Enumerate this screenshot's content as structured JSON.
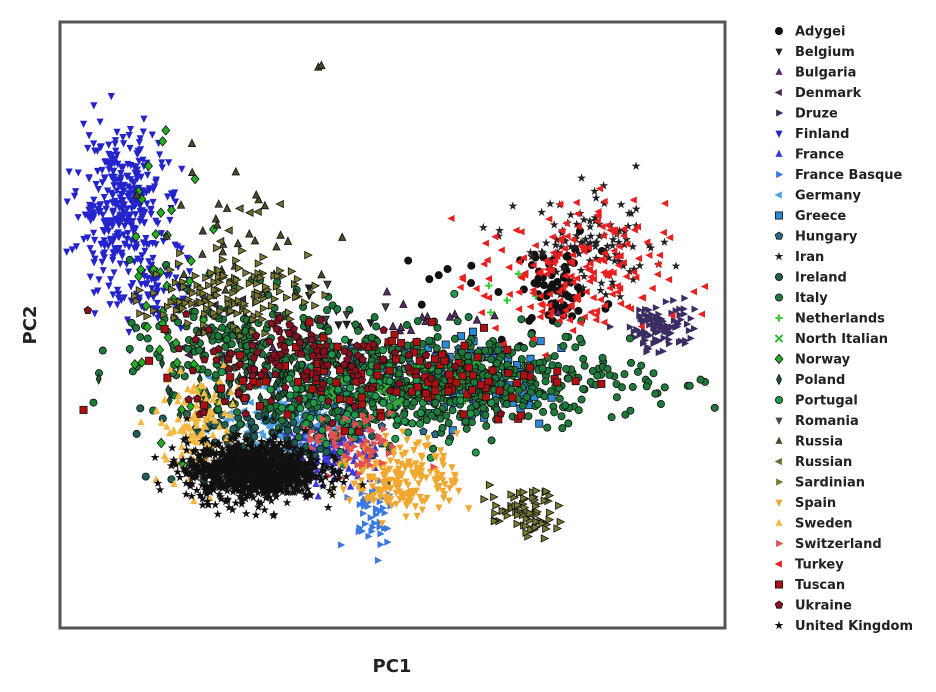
{
  "chart_data": {
    "type": "scatter",
    "title": "",
    "xlabel": "PC1",
    "ylabel": "PC2",
    "xlim": [
      0,
      100
    ],
    "ylim": [
      0,
      100
    ],
    "grid": false,
    "legend_position": "right",
    "series": [
      {
        "name": "Adygei",
        "color": "#111111",
        "marker": "circle",
        "clusters": [
          {
            "cx": 75,
            "cy": 56,
            "sx": 3.2,
            "sy": 3.2,
            "n": 65
          },
          {
            "cx": 61,
            "cy": 55,
            "sx": 5,
            "sy": 4,
            "n": 12
          }
        ]
      },
      {
        "name": "Belgium",
        "color": "#222222",
        "marker": "tri-down",
        "clusters": [
          {
            "cx": 43,
            "cy": 51,
            "sx": 3,
            "sy": 4,
            "n": 8
          }
        ]
      },
      {
        "name": "Bulgaria",
        "color": "#5b2a6b",
        "marker": "tri-up",
        "clusters": [
          {
            "cx": 51,
            "cy": 48,
            "sx": 9,
            "sy": 3.5,
            "n": 28
          }
        ]
      },
      {
        "name": "Denmark",
        "color": "#4a2a55",
        "marker": "tri-left",
        "clusters": [
          {
            "cx": 28,
            "cy": 47,
            "sx": 5,
            "sy": 4,
            "n": 18
          }
        ]
      },
      {
        "name": "Druze",
        "color": "#3b2d63",
        "marker": "tri-right",
        "clusters": [
          {
            "cx": 90.5,
            "cy": 50,
            "sx": 2.4,
            "sy": 2.2,
            "n": 95
          }
        ]
      },
      {
        "name": "Finland",
        "color": "#2424cc",
        "marker": "tri-down",
        "clusters": [
          {
            "cx": 9,
            "cy": 70,
            "sx": 3.2,
            "sy": 6,
            "n": 330
          },
          {
            "cx": 14,
            "cy": 56,
            "sx": 3.5,
            "sy": 4,
            "n": 90
          }
        ]
      },
      {
        "name": "France",
        "color": "#3a3ad8",
        "marker": "tri-up",
        "clusters": [
          {
            "cx": 40,
            "cy": 29,
            "sx": 3.5,
            "sy": 2.2,
            "n": 150
          }
        ]
      },
      {
        "name": "France Basque",
        "color": "#3a7ae0",
        "marker": "tri-right",
        "clusters": [
          {
            "cx": 47,
            "cy": 19,
            "sx": 2,
            "sy": 3,
            "n": 45
          }
        ]
      },
      {
        "name": "Germany",
        "color": "#4aa0e0",
        "marker": "tri-left",
        "clusters": [
          {
            "cx": 35,
            "cy": 35,
            "sx": 6,
            "sy": 3,
            "n": 140
          }
        ]
      },
      {
        "name": "Greece",
        "color": "#2b8ad6",
        "marker": "square",
        "clusters": [
          {
            "cx": 63,
            "cy": 41,
            "sx": 5,
            "sy": 3,
            "n": 150
          }
        ]
      },
      {
        "name": "Hungary",
        "color": "#2a6a88",
        "marker": "pentagon",
        "clusters": [
          {
            "cx": 48,
            "cy": 39,
            "sx": 9,
            "sy": 3.5,
            "n": 110
          }
        ]
      },
      {
        "name": "Iran",
        "color": "#222222",
        "marker": "star",
        "clusters": [
          {
            "cx": 80,
            "cy": 63,
            "sx": 5.5,
            "sy": 4,
            "n": 110
          }
        ]
      },
      {
        "name": "Ireland",
        "color": "#1f5f56",
        "marker": "circle",
        "clusters": [
          {
            "cx": 30,
            "cy": 31,
            "sx": 8,
            "sy": 3.5,
            "n": 120
          }
        ]
      },
      {
        "name": "Italy",
        "color": "#1d7a3a",
        "marker": "circle",
        "clusters": [
          {
            "cx": 55,
            "cy": 41,
            "sx": 16,
            "sy": 4,
            "n": 650
          },
          {
            "cx": 27,
            "cy": 48,
            "sx": 7,
            "sy": 4,
            "n": 160
          }
        ]
      },
      {
        "name": "Netherlands",
        "color": "#33cc33",
        "marker": "plus",
        "clusters": [
          {
            "cx": 66,
            "cy": 53,
            "sx": 2,
            "sy": 2,
            "n": 5
          }
        ]
      },
      {
        "name": "North Italian",
        "color": "#33b833",
        "marker": "x",
        "clusters": [
          {
            "cx": 50,
            "cy": 40,
            "sx": 8,
            "sy": 3,
            "n": 25
          }
        ]
      },
      {
        "name": "Norway",
        "color": "#22b022",
        "marker": "diamond",
        "clusters": [
          {
            "cx": 15,
            "cy": 55,
            "sx": 4,
            "sy": 12,
            "n": 40
          }
        ]
      },
      {
        "name": "Poland",
        "color": "#1a5a30",
        "marker": "thin-diamond",
        "clusters": [
          {
            "cx": 30,
            "cy": 40,
            "sx": 8,
            "sy": 3,
            "n": 45
          }
        ]
      },
      {
        "name": "Portugal",
        "color": "#1f9a4a",
        "marker": "circle",
        "clusters": [
          {
            "cx": 44,
            "cy": 38,
            "sx": 8,
            "sy": 4,
            "n": 120
          }
        ]
      },
      {
        "name": "Romania",
        "color": "#444444",
        "marker": "tri-down",
        "clusters": [
          {
            "cx": 37,
            "cy": 49,
            "sx": 8,
            "sy": 4,
            "n": 16
          }
        ]
      },
      {
        "name": "Russia",
        "color": "#4a4a2a",
        "marker": "tri-up",
        "clusters": [
          {
            "cx": 26,
            "cy": 62,
            "sx": 6,
            "sy": 7,
            "n": 40
          },
          {
            "cx": 39,
            "cy": 93,
            "sx": 0.4,
            "sy": 1.2,
            "n": 2
          }
        ]
      },
      {
        "name": "Russian",
        "color": "#6b6b30",
        "marker": "tri-left",
        "clusters": [
          {
            "cx": 28,
            "cy": 68,
            "sx": 4,
            "sy": 3,
            "n": 6
          }
        ]
      },
      {
        "name": "Sardinian",
        "color": "#7a7a30",
        "marker": "tri-right",
        "clusters": [
          {
            "cx": 70,
            "cy": 19,
            "sx": 2.6,
            "sy": 2,
            "n": 70
          },
          {
            "cx": 25,
            "cy": 55,
            "sx": 6,
            "sy": 3,
            "n": 140
          }
        ]
      },
      {
        "name": "Spain",
        "color": "#f0a830",
        "marker": "tri-down",
        "clusters": [
          {
            "cx": 52,
            "cy": 25,
            "sx": 4,
            "sy": 3,
            "n": 190
          }
        ]
      },
      {
        "name": "Sweden",
        "color": "#f5b840",
        "marker": "tri-up",
        "clusters": [
          {
            "cx": 21,
            "cy": 33,
            "sx": 3,
            "sy": 5,
            "n": 120
          }
        ]
      },
      {
        "name": "Switzerland",
        "color": "#e05050",
        "marker": "tri-right",
        "clusters": [
          {
            "cx": 44,
            "cy": 30,
            "sx": 4,
            "sy": 2.5,
            "n": 70
          }
        ]
      },
      {
        "name": "Turkey",
        "color": "#e82020",
        "marker": "tri-left",
        "clusters": [
          {
            "cx": 77,
            "cy": 58,
            "sx": 7,
            "sy": 6,
            "n": 180
          }
        ]
      },
      {
        "name": "Tuscan",
        "color": "#b01010",
        "marker": "square",
        "clusters": [
          {
            "cx": 50,
            "cy": 42,
            "sx": 14,
            "sy": 4,
            "n": 120
          }
        ]
      },
      {
        "name": "Ukraine",
        "color": "#8a1020",
        "marker": "pentagon",
        "clusters": [
          {
            "cx": 38,
            "cy": 44,
            "sx": 10,
            "sy": 4,
            "n": 120
          }
        ]
      },
      {
        "name": "United Kingdom",
        "color": "#111111",
        "marker": "star",
        "clusters": [
          {
            "cx": 29,
            "cy": 26,
            "sx": 5,
            "sy": 2.4,
            "n": 950
          }
        ]
      }
    ]
  }
}
